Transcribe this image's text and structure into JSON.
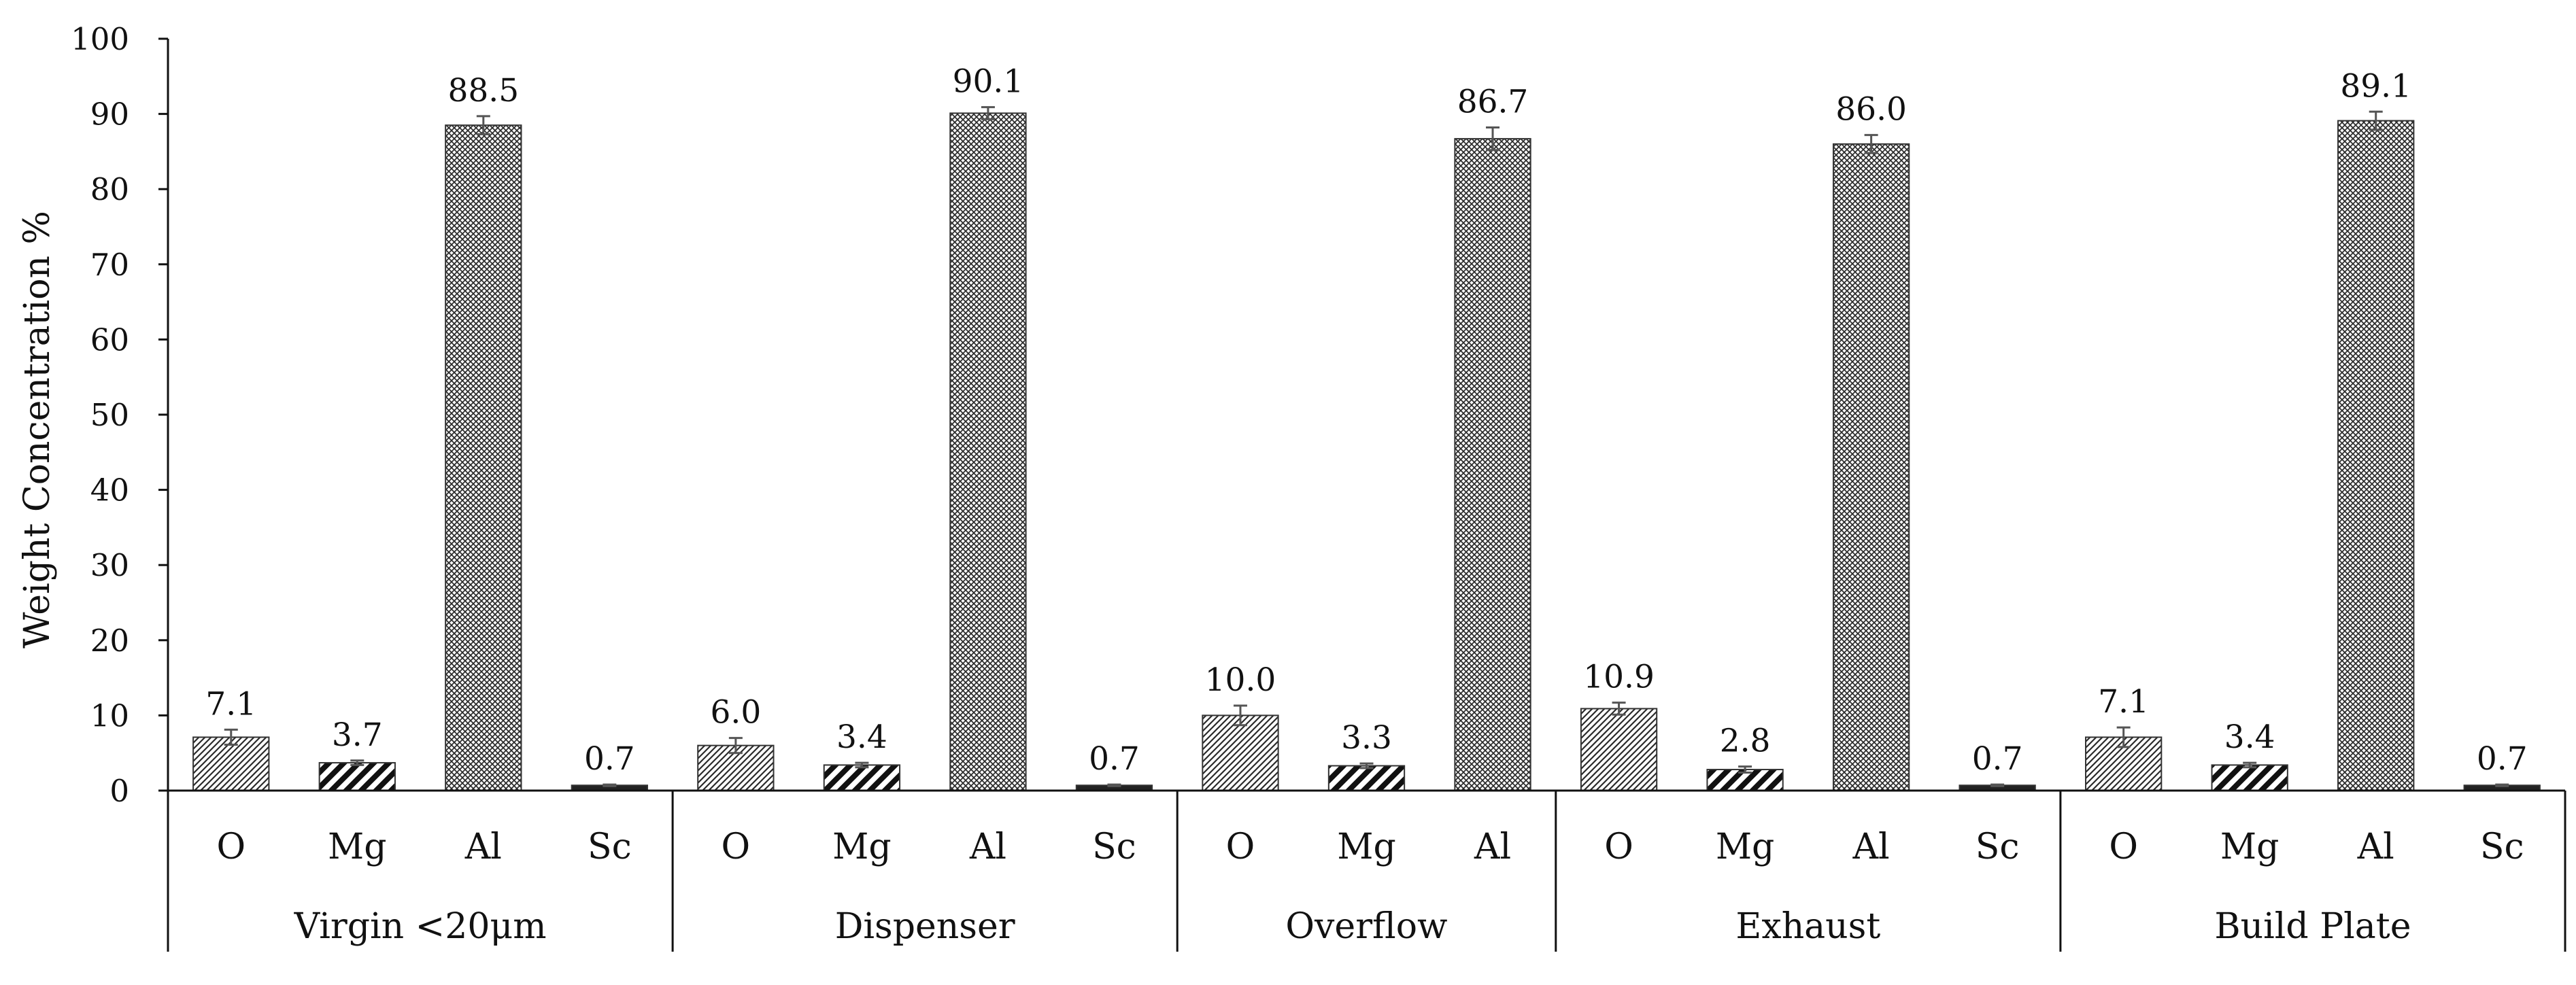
{
  "chart_data": {
    "type": "bar",
    "title": "",
    "ylabel": "Weight Concentration %",
    "xlabel": "",
    "ylim": [
      0,
      100
    ],
    "yticks": [
      0,
      10,
      20,
      30,
      40,
      50,
      60,
      70,
      80,
      90,
      100
    ],
    "grid": false,
    "legend": "none",
    "elements": [
      "O",
      "Mg",
      "Al",
      "Sc"
    ],
    "groups": [
      {
        "name": "Virgin <20μm",
        "categories": [
          "O",
          "Mg",
          "Al",
          "Sc"
        ],
        "values": [
          7.1,
          3.7,
          88.5,
          0.7
        ],
        "labels": [
          "7.1",
          "3.7",
          "88.5",
          "0.7"
        ],
        "errors": [
          1.0,
          0.3,
          1.2,
          0.1
        ]
      },
      {
        "name": "Dispenser",
        "categories": [
          "O",
          "Mg",
          "Al",
          "Sc"
        ],
        "values": [
          6.0,
          3.4,
          90.1,
          0.7
        ],
        "labels": [
          "6.0",
          "3.4",
          "90.1",
          "0.7"
        ],
        "errors": [
          1.0,
          0.3,
          0.8,
          0.1
        ]
      },
      {
        "name": "Overflow",
        "categories": [
          "O",
          "Mg",
          "Al"
        ],
        "values": [
          10.0,
          3.3,
          86.7
        ],
        "labels": [
          "10.0",
          "3.3",
          "86.7"
        ],
        "errors": [
          1.3,
          0.3,
          1.5
        ]
      },
      {
        "name": "Exhaust",
        "categories": [
          "O",
          "Mg",
          "Al",
          "Sc"
        ],
        "values": [
          10.9,
          2.8,
          86.0,
          0.7
        ],
        "labels": [
          "10.9",
          "2.8",
          "86.0",
          "0.7"
        ],
        "errors": [
          0.8,
          0.4,
          1.2,
          0.1
        ]
      },
      {
        "name": "Build Plate",
        "categories": [
          "O",
          "Mg",
          "Al",
          "Sc"
        ],
        "values": [
          7.1,
          3.4,
          89.1,
          0.7
        ],
        "labels": [
          "7.1",
          "3.4",
          "89.1",
          "0.7"
        ],
        "errors": [
          1.3,
          0.3,
          1.2,
          0.1
        ]
      }
    ]
  }
}
